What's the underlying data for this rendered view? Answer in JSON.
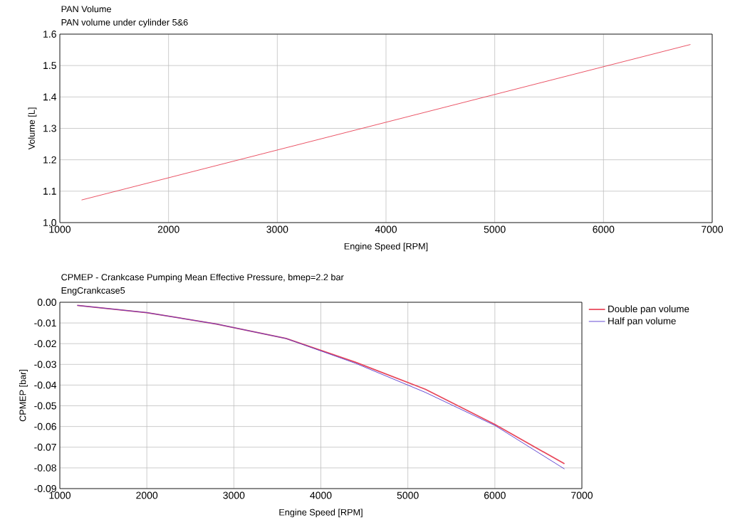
{
  "chart_data": [
    {
      "type": "line",
      "title": "PAN Volume",
      "subtitle": "PAN volume under cylinder 5&6",
      "xlabel": "Engine Speed [RPM]",
      "ylabel": "Volume [L]",
      "x": [
        1200,
        6800
      ],
      "series": [
        {
          "color": "#e8475a",
          "values": [
            1.072,
            1.567
          ]
        }
      ],
      "xlim": [
        1000,
        7000
      ],
      "xticks": [
        1000,
        2000,
        3000,
        4000,
        5000,
        6000,
        7000
      ],
      "ylim": [
        1.0,
        1.6
      ],
      "yticks": [
        {
          "value": 1.0,
          "label": "1.0"
        },
        1.1,
        1.2,
        1.3,
        1.4,
        1.5,
        1.6
      ],
      "grid": true
    },
    {
      "type": "line",
      "title": "CPMEP - Crankcase Pumping Mean Effective Pressure, bmep=2.2 bar",
      "subtitle": "EngCrankcase5",
      "xlabel": "Engine Speed [RPM]",
      "ylabel": "CPMEP [bar]",
      "x": [
        1200,
        2000,
        2800,
        3600,
        4400,
        5200,
        6000,
        6800
      ],
      "series": [
        {
          "name": "Double pan volume",
          "color": "#e8475a",
          "values": [
            -0.0015,
            -0.005,
            -0.0105,
            -0.0175,
            -0.029,
            -0.042,
            -0.059,
            -0.078
          ]
        },
        {
          "name": "Half pan volume",
          "color": "#5a3fd0",
          "values": [
            -0.0015,
            -0.005,
            -0.0105,
            -0.0175,
            -0.0295,
            -0.0435,
            -0.0595,
            -0.0805
          ]
        }
      ],
      "xlim": [
        1000,
        7000
      ],
      "xticks": [
        1000,
        2000,
        3000,
        4000,
        5000,
        6000,
        7000
      ],
      "ylim": [
        -0.09,
        0.0
      ],
      "yticks": [
        {
          "value": -0.09,
          "label": "-0.09"
        },
        {
          "value": -0.08,
          "label": "-0.08"
        },
        {
          "value": -0.07,
          "label": "-0.07"
        },
        {
          "value": -0.06,
          "label": "-0.06"
        },
        {
          "value": -0.05,
          "label": "-0.05"
        },
        {
          "value": -0.04,
          "label": "-0.04"
        },
        {
          "value": -0.03,
          "label": "-0.03"
        },
        {
          "value": -0.02,
          "label": "-0.02"
        },
        {
          "value": -0.01,
          "label": "-0.01"
        },
        {
          "value": 0.0,
          "label": "0.00"
        }
      ],
      "grid": true,
      "legend": "top right"
    }
  ]
}
